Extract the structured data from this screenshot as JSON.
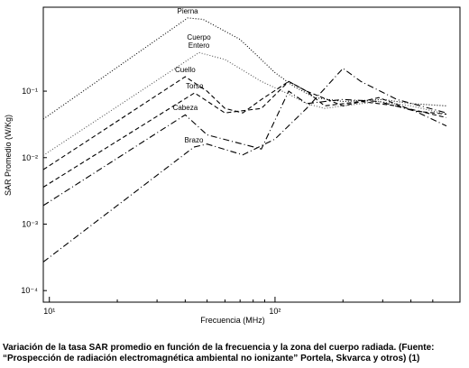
{
  "chart_data": {
    "type": "line",
    "log_x": true,
    "log_y": true,
    "xlabel": "Frecuencia (MHz)",
    "ylabel": "SAR Promedio (W/Kg)",
    "xlim": [
      9.4,
      660
    ],
    "ylim": [
      6.7e-05,
      1.83
    ],
    "xticks": [
      {
        "value": 10,
        "label": "10¹"
      },
      {
        "value": 100,
        "label": "10²"
      }
    ],
    "xminorticks": [
      20,
      30,
      40,
      50,
      60,
      70,
      80,
      90,
      200,
      300,
      400,
      500
    ],
    "yticks": [
      {
        "value": 0.0001,
        "label": "10⁻⁴"
      },
      {
        "value": 0.001,
        "label": "10⁻³"
      },
      {
        "value": 0.01,
        "label": "10⁻²"
      },
      {
        "value": 0.1,
        "label": "10⁻¹"
      }
    ],
    "series": [
      {
        "name": "Pierna",
        "color": "#000000",
        "style": "dotted",
        "x": [
          9.4,
          41,
          48,
          70,
          100,
          120,
          150,
          200,
          300,
          400,
          575
        ],
        "values": [
          0.038,
          1.26,
          1.2,
          0.6,
          0.19,
          0.12,
          0.08,
          0.07,
          0.075,
          0.065,
          0.06
        ]
      },
      {
        "name": "Cuerpo Entero",
        "color": "#555555",
        "style": "dotted",
        "x": [
          9.4,
          46,
          60,
          87,
          115,
          138,
          166,
          200,
          288,
          400,
          575
        ],
        "values": [
          0.0108,
          0.38,
          0.3,
          0.14,
          0.09,
          0.065,
          0.055,
          0.06,
          0.07,
          0.06,
          0.045
        ]
      },
      {
        "name": "Cuello",
        "color": "#000000",
        "style": "dashed",
        "x": [
          9.4,
          40,
          50,
          60,
          72,
          87,
          115,
          138,
          166,
          240,
          347,
          575
        ],
        "values": [
          0.0066,
          0.165,
          0.1,
          0.055,
          0.047,
          0.075,
          0.14,
          0.1,
          0.06,
          0.07,
          0.06,
          0.04
        ]
      },
      {
        "name": "Torso",
        "color": "#000000",
        "style": "dashed",
        "x": [
          9.4,
          44,
          60,
          87,
          115,
          138,
          200,
          288,
          417,
          575
        ],
        "values": [
          0.0036,
          0.094,
          0.047,
          0.055,
          0.14,
          0.1,
          0.06,
          0.08,
          0.05,
          0.045
        ]
      },
      {
        "name": "Cabeza",
        "color": "#000000",
        "style": "dashdot",
        "x": [
          9.4,
          40,
          50,
          87,
          115,
          138,
          200,
          288,
          417,
          575
        ],
        "values": [
          0.0019,
          0.044,
          0.022,
          0.0135,
          0.1,
          0.065,
          0.075,
          0.07,
          0.05,
          0.03
        ]
      },
      {
        "name": "Brazo",
        "color": "#000000",
        "style": "dashdot",
        "x": [
          9.4,
          43.7,
          50,
          72,
          100,
          138,
          200,
          240,
          347,
          575
        ],
        "values": [
          0.00027,
          0.0144,
          0.016,
          0.011,
          0.019,
          0.055,
          0.22,
          0.14,
          0.075,
          0.047
        ]
      }
    ]
  },
  "caption": "Variación de la tasa SAR promedio en función de la frecuencia y la zona del cuerpo radiada. (Fuente: “Prospección de radiación electromagnética ambiental no ionizante” Portela, Skvarca y otros) (1)"
}
